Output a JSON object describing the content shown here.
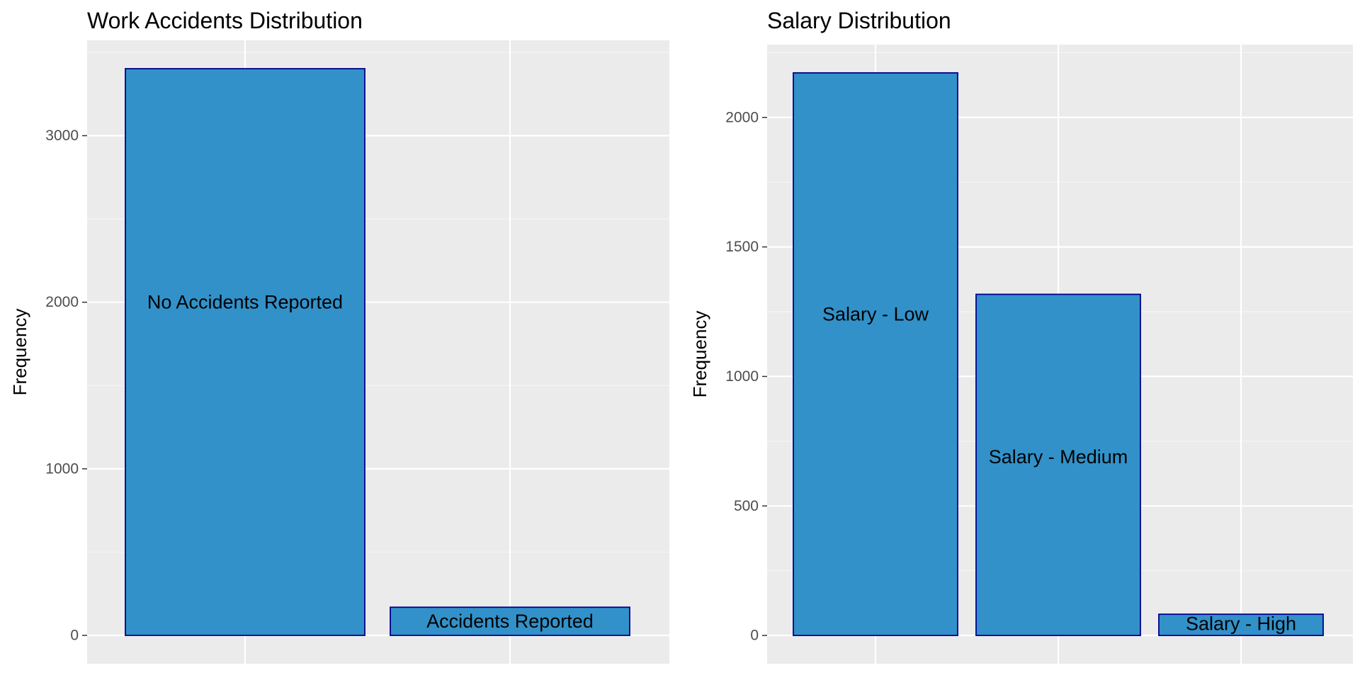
{
  "colors": {
    "panel_background": "#ebebeb",
    "grid_major": "#ffffff",
    "grid_minor": "#f5f5f5",
    "bar_fill": "#3291c9",
    "bar_outline": "#00008b",
    "tick_text": "#4d4d4d",
    "text": "#000000"
  },
  "chart_data": [
    {
      "type": "bar",
      "title": "Work Accidents Distribution",
      "xlabel": "",
      "ylabel": "Frequency",
      "categories": [
        "No Accidents Reported",
        "Accidents Reported"
      ],
      "values": [
        3402,
        169
      ],
      "bar_labels": [
        "No Accidents Reported",
        "Accidents Reported"
      ],
      "label_positions": [
        2000,
        85
      ],
      "yticks": [
        0,
        1000,
        2000,
        3000
      ],
      "ytick_labels": [
        "0",
        "1000",
        "2000",
        "3000"
      ],
      "ylim": [
        -170,
        3572
      ],
      "grid": true,
      "legend": "none"
    },
    {
      "type": "bar",
      "title": "Salary Distribution",
      "xlabel": "",
      "ylabel": "Frequency",
      "categories": [
        "Salary - Low",
        "Salary - Medium",
        "Salary - High"
      ],
      "values": [
        2172,
        1317,
        82
      ],
      "bar_labels": [
        "Salary - Low",
        "Salary - Medium",
        "Salary - High"
      ],
      "label_positions": [
        1240,
        690,
        45
      ],
      "yticks": [
        0,
        500,
        1000,
        1500,
        2000
      ],
      "ytick_labels": [
        "0",
        "500",
        "1000",
        "1500",
        "2000"
      ],
      "ylim": [
        -109,
        2281
      ],
      "grid": true,
      "legend": "none"
    }
  ]
}
